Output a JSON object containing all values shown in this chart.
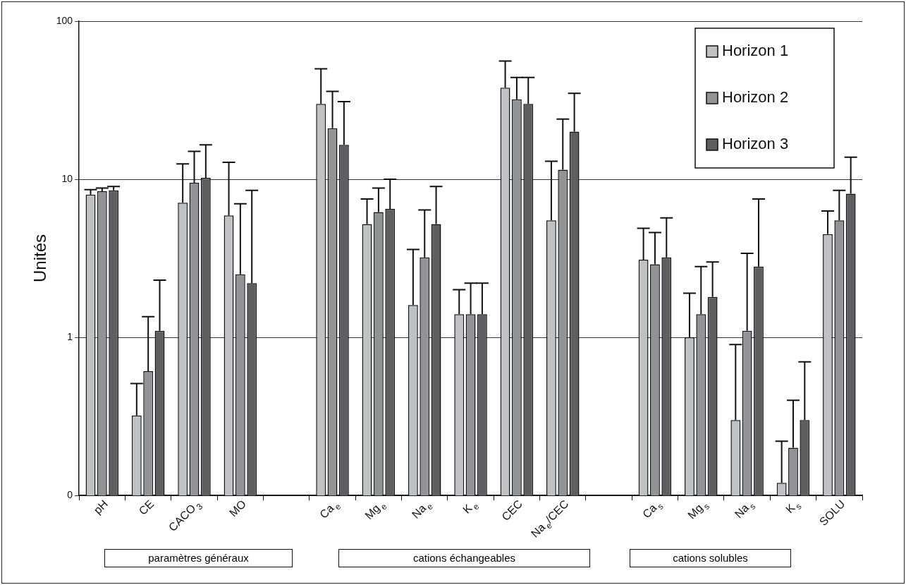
{
  "chart_data": {
    "type": "bar",
    "ylabel": "Unités",
    "log": "y",
    "ylim": [
      0.1,
      100
    ],
    "yticks": [
      {
        "value": 0.1,
        "label": "0"
      },
      1,
      10,
      100
    ],
    "grid": "y",
    "legend": "top right",
    "categories": [
      "pH",
      "CE",
      "CACO$_{3}$",
      "MO",
      null,
      "Ca$_{e}$",
      "Mg$_{e}$",
      "Na$_{e}$",
      "K$_{e}$",
      "CEC",
      "Na$_{e}$/CEC",
      null,
      "Ca$_{s}$",
      "Mg$_{s}$",
      "Na$_{s}$",
      "K$_{s}$",
      "SOLU"
    ],
    "series": [
      {
        "name": "Horizon 1",
        "color": "#c0c1c5",
        "values": [
          8.0,
          0.32,
          7.1,
          5.9,
          null,
          30,
          5.2,
          1.6,
          1.4,
          38,
          5.5,
          null,
          3.1,
          1.0,
          0.3,
          0.12,
          4.5
        ],
        "errors": [
          [
            8.0,
            8.6
          ],
          [
            0.32,
            0.51
          ],
          [
            7.1,
            12.5
          ],
          [
            5.9,
            12.8
          ],
          null,
          [
            30,
            50
          ],
          [
            5.2,
            7.5
          ],
          [
            1.6,
            3.6
          ],
          [
            1.4,
            2.0
          ],
          [
            38,
            56
          ],
          [
            5.5,
            13
          ],
          null,
          [
            3.1,
            4.9
          ],
          [
            1.0,
            1.9
          ],
          [
            0.3,
            0.9
          ],
          [
            0.12,
            0.22
          ],
          [
            4.5,
            6.3
          ]
        ]
      },
      {
        "name": "Horizon 2",
        "color": "#929397",
        "values": [
          8.4,
          0.61,
          9.5,
          2.5,
          null,
          21,
          6.2,
          3.2,
          1.4,
          32,
          11.5,
          null,
          2.9,
          1.4,
          1.1,
          0.2,
          5.5
        ],
        "errors": [
          [
            8.4,
            8.8
          ],
          [
            0.61,
            1.35
          ],
          [
            9.5,
            15
          ],
          [
            2.5,
            7.0
          ],
          null,
          [
            21,
            36
          ],
          [
            6.2,
            8.8
          ],
          [
            3.2,
            6.4
          ],
          [
            1.4,
            2.2
          ],
          [
            32,
            44
          ],
          [
            11.5,
            24
          ],
          null,
          [
            2.9,
            4.6
          ],
          [
            1.4,
            2.8
          ],
          [
            1.1,
            3.4
          ],
          [
            0.2,
            0.4
          ],
          [
            5.5,
            8.5
          ]
        ]
      },
      {
        "name": "Horizon 3",
        "color": "#5f5f61",
        "values": [
          8.5,
          1.1,
          10.2,
          2.2,
          null,
          16.5,
          6.5,
          5.2,
          1.4,
          30,
          20,
          null,
          3.2,
          1.8,
          2.8,
          0.3,
          8.1
        ],
        "errors": [
          [
            8.5,
            9.0
          ],
          [
            1.1,
            2.3
          ],
          [
            10.2,
            16.5
          ],
          [
            2.2,
            8.5
          ],
          null,
          [
            16.5,
            31
          ],
          [
            6.5,
            10
          ],
          [
            5.2,
            9.0
          ],
          [
            1.4,
            2.2
          ],
          [
            30,
            44
          ],
          [
            20,
            35
          ],
          null,
          [
            3.2,
            5.7
          ],
          [
            1.8,
            3.0
          ],
          [
            2.8,
            7.5
          ],
          [
            0.3,
            0.7
          ],
          [
            8.1,
            13.8
          ]
        ]
      }
    ],
    "annotations": [
      "paramètres généraux",
      "cations échangeables",
      "cations solubles"
    ]
  }
}
